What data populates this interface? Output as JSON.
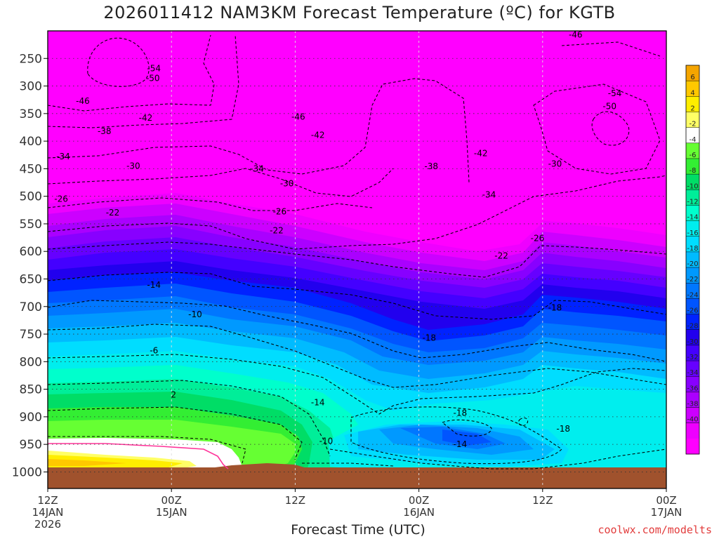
{
  "title": "2026011412 NAM3KM Forecast Temperature (ºC) for KGTB",
  "credit": "coolwx.com/modelts",
  "chart_data": {
    "type": "heatmap",
    "xlabel": "Forecast Time (UTC)",
    "ylabel": "",
    "x_ticks": [
      {
        "hour": 0,
        "lines": [
          "12Z",
          "14JAN",
          "2026"
        ]
      },
      {
        "hour": 12,
        "lines": [
          "00Z",
          "15JAN"
        ]
      },
      {
        "hour": 24,
        "lines": [
          "12Z"
        ]
      },
      {
        "hour": 36,
        "lines": [
          "00Z",
          "16JAN"
        ]
      },
      {
        "hour": 48,
        "lines": [
          "12Z"
        ]
      },
      {
        "hour": 60,
        "lines": [
          "00Z",
          "17JAN"
        ]
      }
    ],
    "xlim": [
      0,
      60
    ],
    "y_ticks": [
      250,
      300,
      350,
      400,
      450,
      500,
      550,
      600,
      650,
      700,
      750,
      800,
      850,
      900,
      950,
      1000
    ],
    "ylim": [
      200,
      1030
    ],
    "y_inverted": true,
    "grid": true,
    "colorbar": {
      "labels": [
        "6",
        "4",
        "2",
        "-2",
        "-4",
        "-6",
        "-8",
        "-10",
        "-12",
        "-14",
        "-16",
        "-18",
        "-20",
        "-22",
        "-24",
        "-26",
        "-28",
        "-30",
        "-32",
        "-34",
        "-36",
        "-38",
        "-40"
      ],
      "colors": [
        "#f5a500",
        "#ffc800",
        "#ffee00",
        "#ffff66",
        "#ffffff",
        "#66ff33",
        "#33ee33",
        "#00dd66",
        "#00ee99",
        "#00ffcc",
        "#00eeee",
        "#00ddff",
        "#00bbff",
        "#0099ff",
        "#0077ff",
        "#0055ff",
        "#0022ff",
        "#2200ee",
        "#4400ff",
        "#6600ff",
        "#8800ff",
        "#aa00ff",
        "#cc00ff",
        "#ee00ff",
        "#ff00ff"
      ]
    },
    "contour_labels": [
      {
        "text": "-46",
        "hour": 51.2,
        "p": 207
      },
      {
        "text": "-54",
        "hour": 10.3,
        "p": 268
      },
      {
        "text": "-50",
        "hour": 10.2,
        "p": 286
      },
      {
        "text": "-54",
        "hour": 55.0,
        "p": 313
      },
      {
        "text": "-46",
        "hour": 3.4,
        "p": 327
      },
      {
        "text": "-50",
        "hour": 54.5,
        "p": 337
      },
      {
        "text": "-42",
        "hour": 9.5,
        "p": 358
      },
      {
        "text": "-46",
        "hour": 24.3,
        "p": 356
      },
      {
        "text": "-38",
        "hour": 5.5,
        "p": 382
      },
      {
        "text": "-42",
        "hour": 26.2,
        "p": 389
      },
      {
        "text": "-42",
        "hour": 42.0,
        "p": 422
      },
      {
        "text": "-34",
        "hour": 1.5,
        "p": 428
      },
      {
        "text": "-30",
        "hour": 8.3,
        "p": 445
      },
      {
        "text": "-34",
        "hour": 20.3,
        "p": 450
      },
      {
        "text": "-38",
        "hour": 37.2,
        "p": 446
      },
      {
        "text": "-30",
        "hour": 49.2,
        "p": 441
      },
      {
        "text": "-30",
        "hour": 23.2,
        "p": 477
      },
      {
        "text": "-26",
        "hour": 1.3,
        "p": 505
      },
      {
        "text": "-34",
        "hour": 42.8,
        "p": 497
      },
      {
        "text": "-22",
        "hour": 6.3,
        "p": 530
      },
      {
        "text": "-26",
        "hour": 22.5,
        "p": 528
      },
      {
        "text": "-22",
        "hour": 22.2,
        "p": 562
      },
      {
        "text": "-26",
        "hour": 47.5,
        "p": 576
      },
      {
        "text": "-22",
        "hour": 44.0,
        "p": 608
      },
      {
        "text": "-14",
        "hour": 10.3,
        "p": 661
      },
      {
        "text": "-18",
        "hour": 49.2,
        "p": 702
      },
      {
        "text": "-10",
        "hour": 14.3,
        "p": 714
      },
      {
        "text": "-18",
        "hour": 37.0,
        "p": 757
      },
      {
        "text": "-6",
        "hour": 10.3,
        "p": 780
      },
      {
        "text": "-14",
        "hour": 26.2,
        "p": 874
      },
      {
        "text": "2",
        "hour": 12.2,
        "p": 860
      },
      {
        "text": "-18",
        "hour": 40.0,
        "p": 893
      },
      {
        "text": "-18",
        "hour": 50.0,
        "p": 922
      },
      {
        "text": "-10",
        "hour": 27.0,
        "p": 944
      },
      {
        "text": "-14",
        "hour": 40.0,
        "p": 950
      }
    ]
  }
}
